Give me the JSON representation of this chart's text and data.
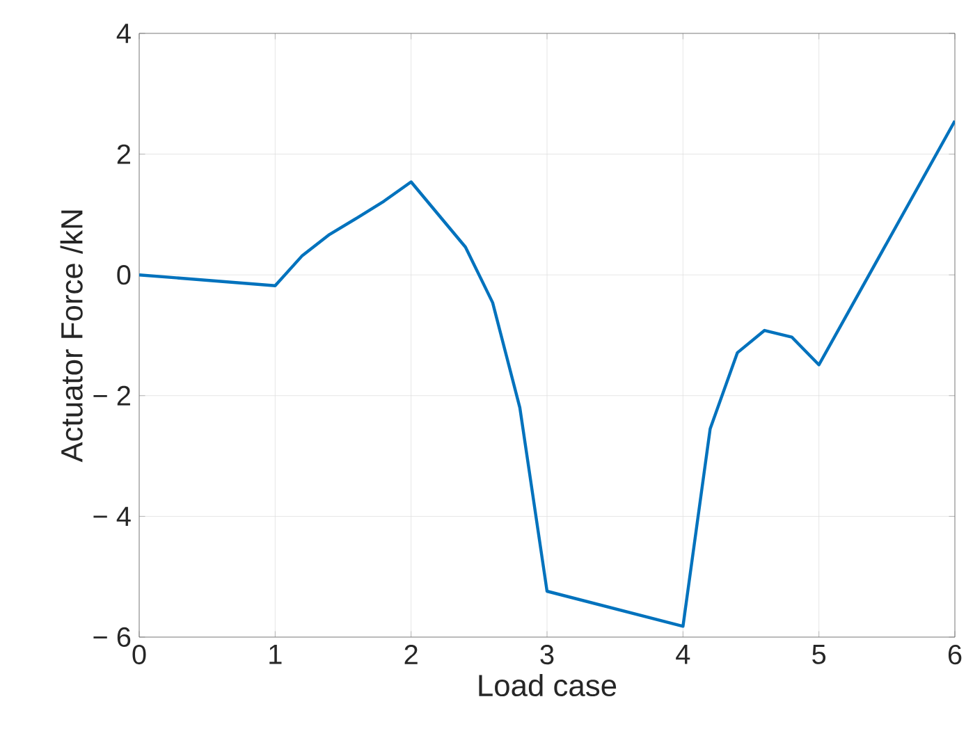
{
  "chart_data": {
    "type": "line",
    "xlabel": "Load case",
    "ylabel": "Actuator Force /kN",
    "x": [
      0,
      1,
      1.2,
      1.4,
      1.6,
      1.8,
      2,
      2.4,
      2.6,
      2.8,
      3,
      4,
      4.2,
      4.4,
      4.6,
      4.8,
      5,
      6
    ],
    "series": [
      {
        "color": "#0072bd",
        "values": [
          0,
          -0.18,
          0.32,
          0.67,
          0.94,
          1.22,
          1.54,
          0.46,
          -0.46,
          -2.2,
          -5.24,
          -5.82,
          -2.55,
          -1.29,
          -0.92,
          -1.03,
          -1.49,
          2.55
        ]
      }
    ],
    "xlim": [
      0,
      6
    ],
    "ylim": [
      -6,
      4
    ],
    "xticks": [
      0,
      1,
      2,
      3,
      4,
      5,
      6
    ],
    "yticks": [
      {
        "value": -6,
        "label": "− 6"
      },
      {
        "value": -4,
        "label": "− 4"
      },
      {
        "value": -2,
        "label": "− 2"
      },
      0,
      2,
      4
    ],
    "grid": true,
    "line_style": "solid",
    "marker": "none"
  }
}
